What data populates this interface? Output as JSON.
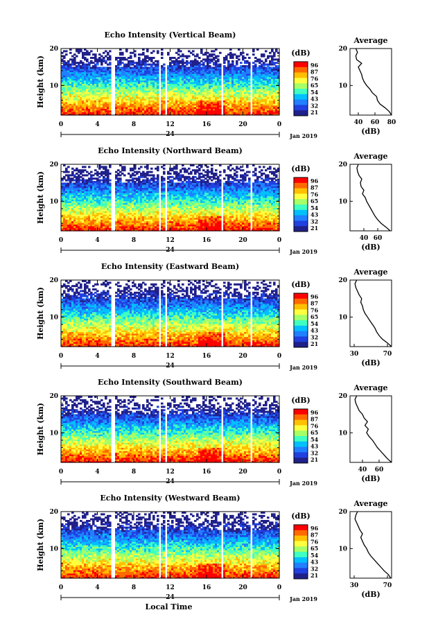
{
  "figure": {
    "x_axis_label": "Local Time",
    "date_label": "Jan 2019",
    "day_label": "24",
    "colorbar_unit": "(dB)",
    "colorbar_ticks": [
      "96",
      "87",
      "76",
      "65",
      "54",
      "43",
      "32",
      "21"
    ],
    "colorbar_colors": [
      "#ff0000",
      "#ff6a00",
      "#ffc000",
      "#ffff40",
      "#a6ff66",
      "#40ffc0",
      "#00c0ff",
      "#2080ff",
      "#2040e0",
      "#20208a"
    ],
    "avg_title": "Average",
    "avg_unit": "(dB)"
  },
  "chart_data": [
    {
      "type": "heatmap",
      "title": "Echo Intensity (Vertical Beam)",
      "ylabel": "Height (km)",
      "xlabel": "",
      "xlim": [
        0,
        24
      ],
      "ylim": [
        2,
        20
      ],
      "x_ticks": [
        "0",
        "4",
        "8",
        "12",
        "16",
        "20",
        "0"
      ],
      "y_ticks": [
        "20",
        "10"
      ],
      "avg_profile": {
        "title": "Average",
        "xlabel": "(dB)",
        "xlim": [
          30,
          80
        ],
        "x_ticks": [
          "40",
          "60",
          "80"
        ],
        "heights": [
          2,
          3,
          4,
          5,
          6,
          7,
          8,
          9,
          10,
          11,
          12,
          13,
          14,
          15,
          16,
          17,
          18,
          19,
          20
        ],
        "values": [
          80,
          77,
          72,
          66,
          63,
          62,
          57,
          54,
          50,
          47,
          45,
          44,
          42,
          40,
          44,
          38,
          37,
          39,
          37
        ]
      }
    },
    {
      "type": "heatmap",
      "title": "Echo Intensity (Northward Beam)",
      "ylabel": "Height (km)",
      "xlabel": "",
      "xlim": [
        0,
        24
      ],
      "ylim": [
        2,
        20
      ],
      "x_ticks": [
        "0",
        "4",
        "8",
        "12",
        "16",
        "20",
        "0"
      ],
      "y_ticks": [
        "20",
        "10"
      ],
      "avg_profile": {
        "title": "Average",
        "xlabel": "(dB)",
        "xlim": [
          20,
          80
        ],
        "x_ticks": [
          "40",
          "60"
        ],
        "heights": [
          2,
          3,
          4,
          5,
          6,
          7,
          8,
          9,
          10,
          11,
          12,
          13,
          14,
          15,
          16,
          17,
          18,
          19,
          20
        ],
        "values": [
          78,
          72,
          65,
          60,
          56,
          53,
          50,
          47,
          44,
          42,
          38,
          40,
          36,
          35,
          37,
          33,
          31,
          30,
          32
        ]
      }
    },
    {
      "type": "heatmap",
      "title": "Echo Intensity (Eastward Beam)",
      "ylabel": "Height (km)",
      "xlabel": "",
      "xlim": [
        0,
        24
      ],
      "ylim": [
        2,
        20
      ],
      "x_ticks": [
        "0",
        "4",
        "8",
        "12",
        "16",
        "20",
        "0"
      ],
      "y_ticks": [
        "20",
        "10"
      ],
      "avg_profile": {
        "title": "Average",
        "xlabel": "(dB)",
        "xlim": [
          25,
          75
        ],
        "x_ticks": [
          "30",
          "70"
        ],
        "heights": [
          2,
          3,
          4,
          5,
          6,
          7,
          8,
          9,
          10,
          11,
          12,
          13,
          14,
          15,
          16,
          17,
          18,
          19,
          20
        ],
        "values": [
          75,
          70,
          64,
          60,
          57,
          55,
          52,
          49,
          46,
          43,
          41,
          40,
          38,
          39,
          36,
          34,
          32,
          31,
          33
        ]
      }
    },
    {
      "type": "heatmap",
      "title": "Echo Intensity (Southward Beam)",
      "ylabel": "Height (km)",
      "xlabel": "",
      "xlim": [
        0,
        24
      ],
      "ylim": [
        2,
        20
      ],
      "x_ticks": [
        "0",
        "4",
        "8",
        "12",
        "16",
        "20",
        "0"
      ],
      "y_ticks": [
        "20",
        "10"
      ],
      "avg_profile": {
        "title": "Average",
        "xlabel": "(dB)",
        "xlim": [
          25,
          75
        ],
        "x_ticks": [
          "40",
          "60"
        ],
        "heights": [
          2,
          3,
          4,
          5,
          6,
          7,
          8,
          9,
          10,
          11,
          12,
          13,
          14,
          15,
          16,
          17,
          18,
          19,
          20
        ],
        "values": [
          75,
          70,
          66,
          62,
          58,
          55,
          52,
          48,
          45,
          47,
          43,
          46,
          42,
          40,
          36,
          34,
          32,
          31,
          33
        ]
      }
    },
    {
      "type": "heatmap",
      "title": "Echo Intensity (Westward Beam)",
      "ylabel": "Height (km)",
      "xlabel": "Local Time",
      "xlim": [
        0,
        24
      ],
      "ylim": [
        2,
        20
      ],
      "x_ticks": [
        "0",
        "4",
        "8",
        "12",
        "16",
        "20",
        "0"
      ],
      "y_ticks": [
        "20",
        "10"
      ],
      "avg_profile": {
        "title": "Average",
        "xlabel": "(dB)",
        "xlim": [
          25,
          75
        ],
        "x_ticks": [
          "30",
          "70"
        ],
        "heights": [
          2,
          3,
          4,
          5,
          6,
          7,
          8,
          9,
          10,
          11,
          12,
          13,
          14,
          15,
          16,
          17,
          18,
          19,
          20
        ],
        "values": [
          74,
          71,
          66,
          62,
          58,
          54,
          50,
          47,
          45,
          42,
          40,
          38,
          40,
          37,
          35,
          33,
          31,
          32,
          34
        ]
      }
    }
  ]
}
